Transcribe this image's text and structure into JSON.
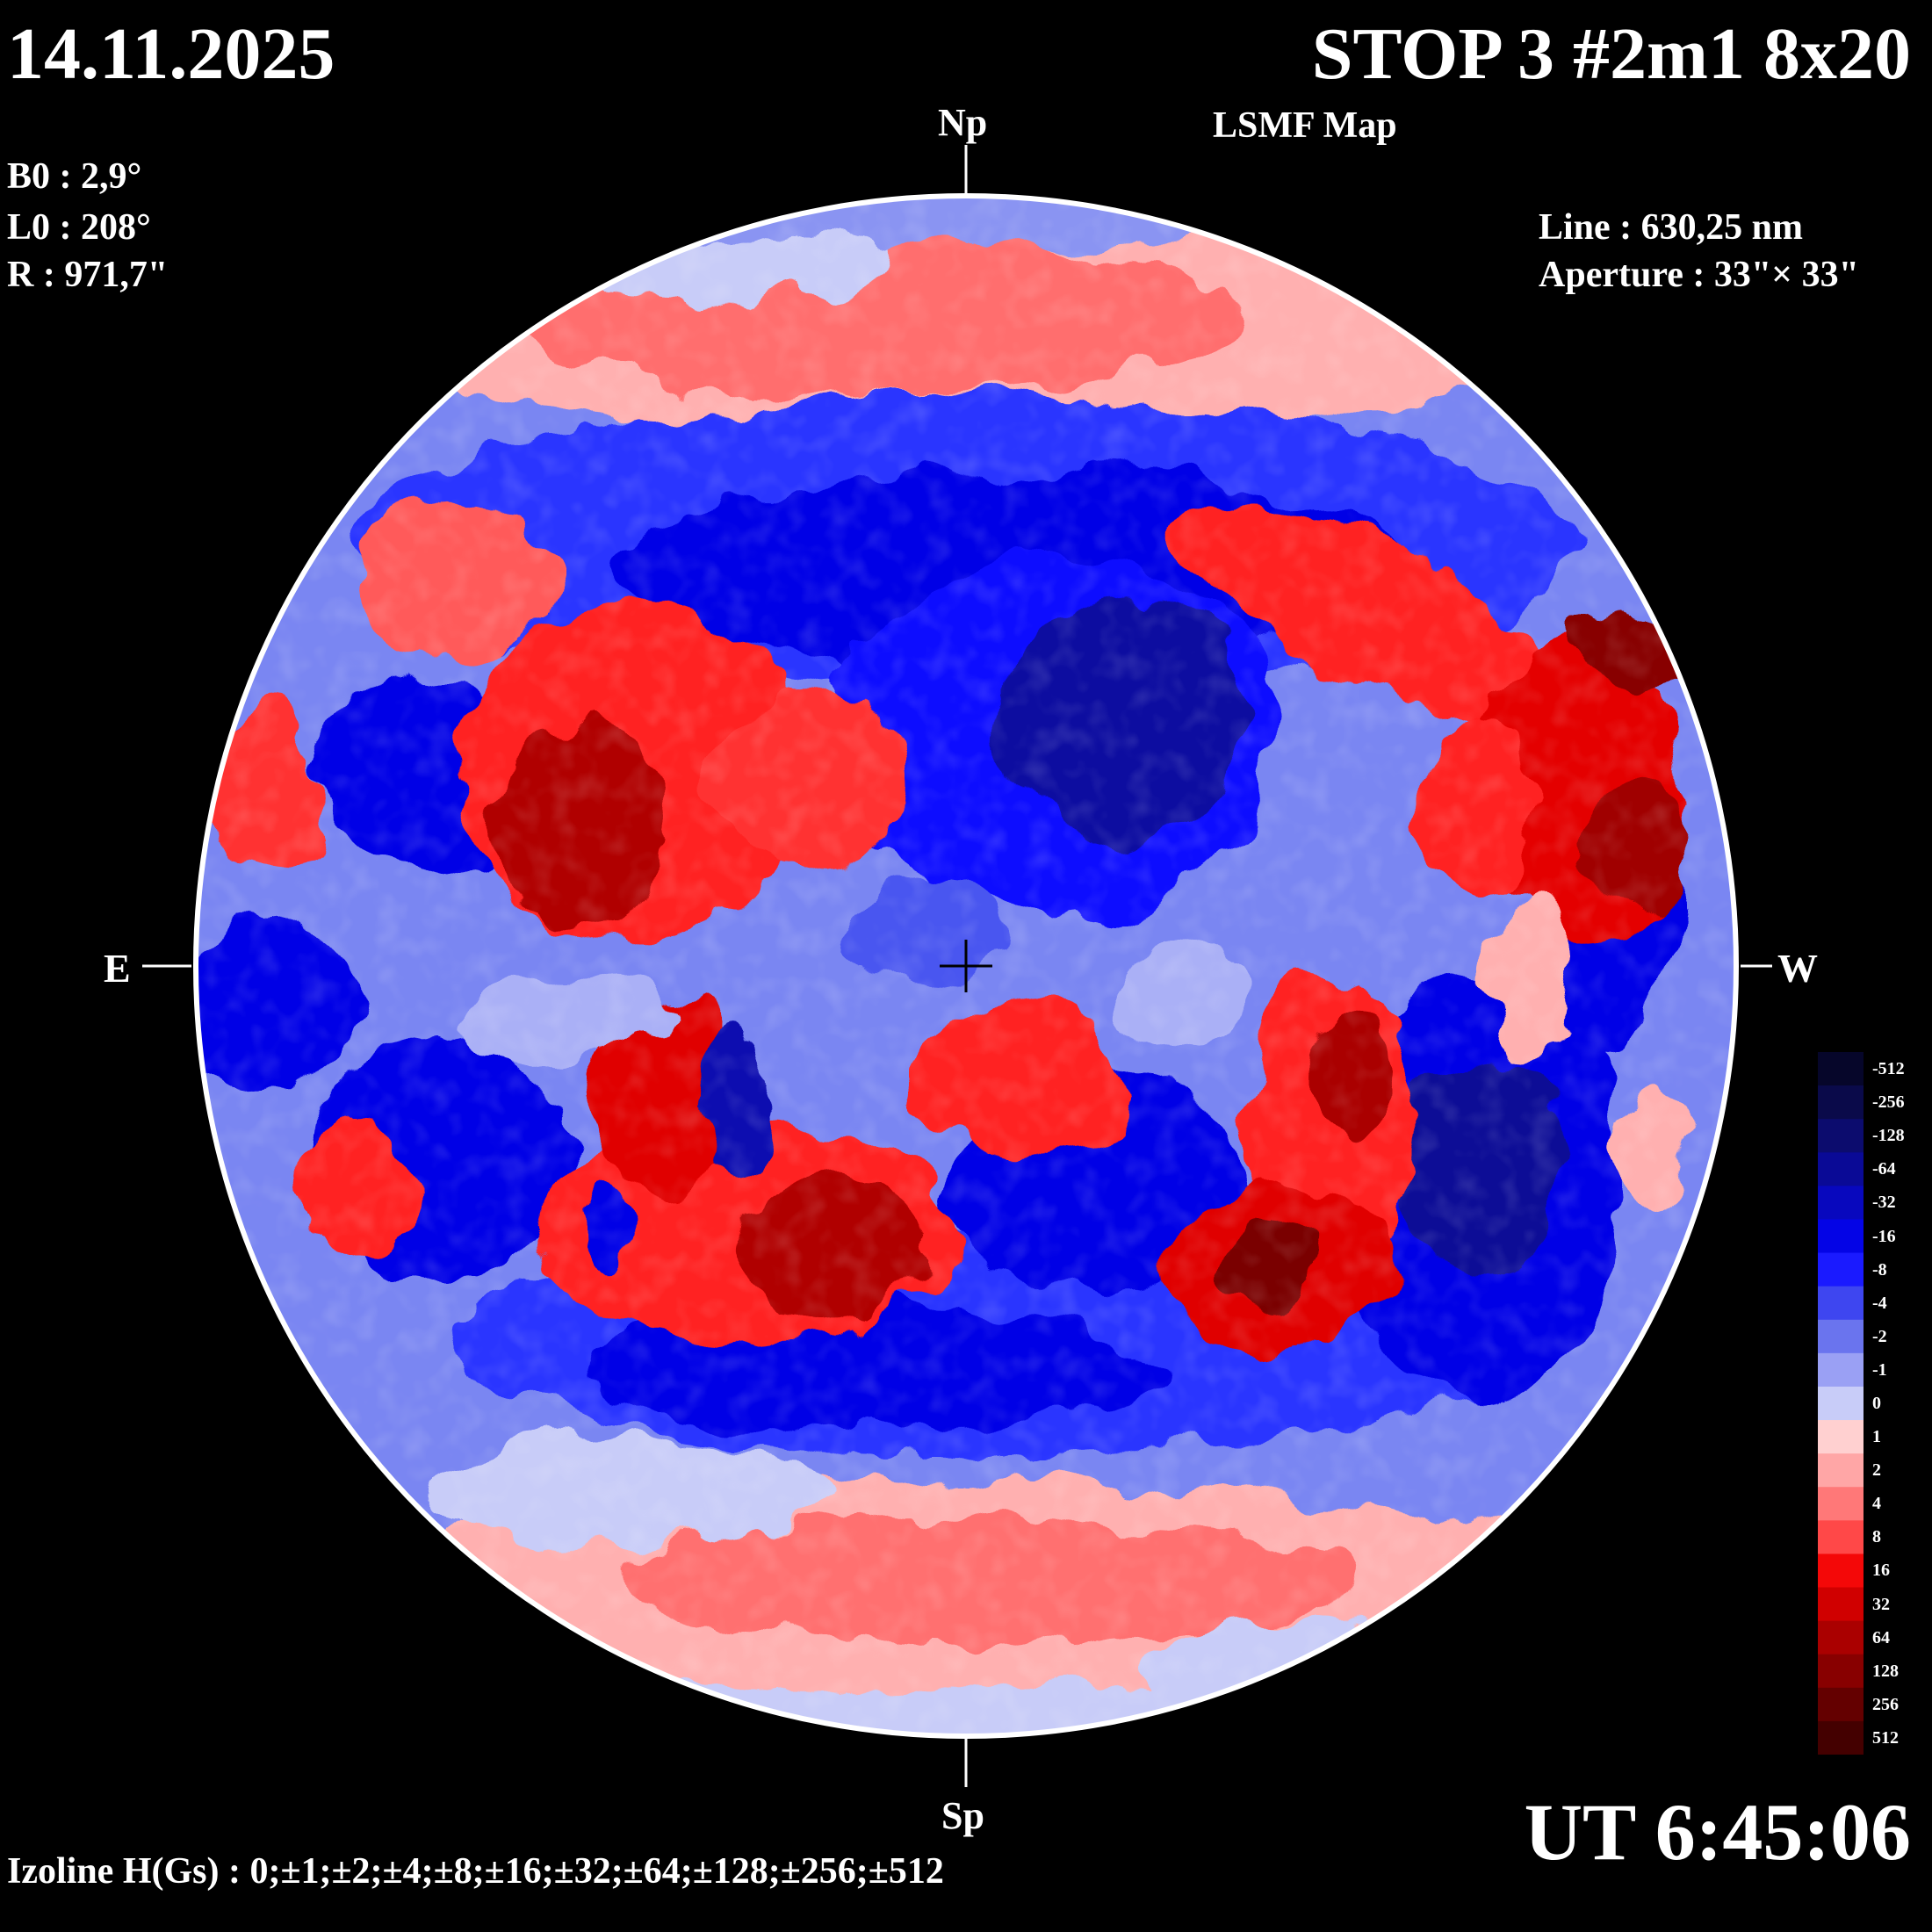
{
  "header": {
    "date": "14.11.2025",
    "title": "STOP 3 #2m1 8x20",
    "subtitle": "LSMF  Map"
  },
  "params": {
    "b0": "B0 : 2,9°",
    "l0": "L0 : 208°",
    "radius": "R  : 971,7\"",
    "line": "Line :  630,25 nm",
    "aperture": "Aperture : 33\"× 33\""
  },
  "directions": {
    "north": "Np",
    "south": "Sp",
    "east": "E",
    "west": "W"
  },
  "footer": {
    "time": "UT 6:45:06",
    "izolines": "Izoline H(Gs) : 0;±1;±2;±4;±8;±16;±32;±64;±128;±256;±512"
  },
  "colorbar": {
    "labels": [
      "-512",
      "-256",
      "-128",
      "-64",
      "-32",
      "-16",
      "-8",
      "-4",
      "-2",
      "-1",
      "0",
      "1",
      "2",
      "4",
      "8",
      "16",
      "32",
      "64",
      "128",
      "256",
      "512"
    ],
    "colors": [
      "#06062a",
      "#0a0a4a",
      "#0c0c6e",
      "#0a0a96",
      "#0808be",
      "#0404e6",
      "#1a1aff",
      "#3e46f0",
      "#6a74ee",
      "#9aa0f4",
      "#c8ccf8",
      "#ffd0d0",
      "#ffa6a6",
      "#ff7878",
      "#ff4848",
      "#f40808",
      "#d00000",
      "#aa0000",
      "#880000",
      "#640000",
      "#440000"
    ]
  },
  "legend_colors": {
    "negative": "#0000ff",
    "positive": "#ff0000",
    "neutral": "#ffffff",
    "background": "#000000"
  }
}
